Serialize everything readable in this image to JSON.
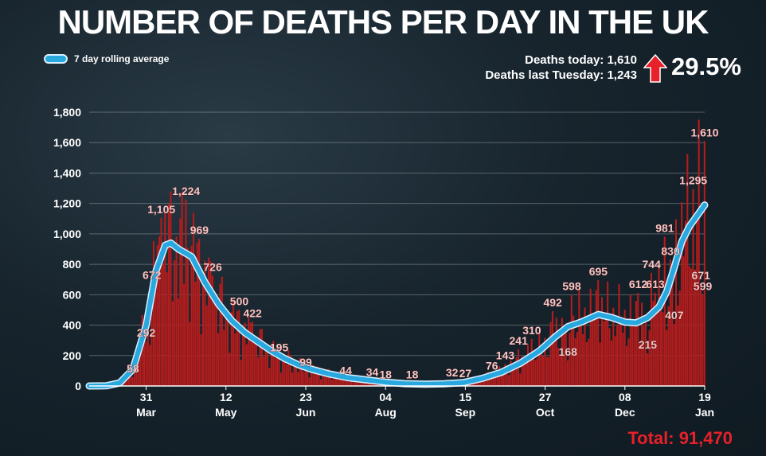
{
  "header": {
    "title": "NUMBER OF DEATHS PER DAY IN THE UK"
  },
  "legend": {
    "label": "7 day rolling average",
    "color": "#29a8e0"
  },
  "stats": {
    "today": "Deaths today: 1,610",
    "last_week": "Deaths last Tuesday: 1,243",
    "change": "29.5%",
    "arrow_icon": "red-up-arrow",
    "arrow_color": "#e8202a"
  },
  "footer": {
    "total": "Total: 91,470"
  },
  "chart_data": {
    "type": "bar",
    "bar_color": "#b81c1c",
    "line_color": "#29a8e0",
    "xlim": [
      "2020-03-01",
      "2021-01-19"
    ],
    "ylim": [
      0,
      1800
    ],
    "grid": true,
    "y_ticks": [
      0,
      200,
      400,
      600,
      800,
      1000,
      1200,
      1400,
      1600,
      1800
    ],
    "y_tick_labels": [
      "0",
      "200",
      "400",
      "600",
      "800",
      "1,000",
      "1,200",
      "1,400",
      "1,600",
      "1,800"
    ],
    "x_ticks": [
      {
        "date": "2020-03-31",
        "day": "31",
        "month": "Mar"
      },
      {
        "date": "2020-05-12",
        "day": "12",
        "month": "May"
      },
      {
        "date": "2020-06-23",
        "day": "23",
        "month": "Jun"
      },
      {
        "date": "2020-08-04",
        "day": "04",
        "month": "Aug"
      },
      {
        "date": "2020-09-15",
        "day": "15",
        "month": "Sep"
      },
      {
        "date": "2020-10-27",
        "day": "27",
        "month": "Oct"
      },
      {
        "date": "2020-12-08",
        "day": "08",
        "month": "Dec"
      },
      {
        "date": "2021-01-19",
        "day": "19",
        "month": "Jan"
      }
    ],
    "annotations": [
      {
        "date": "2020-03-24",
        "value": 58,
        "label": "58"
      },
      {
        "date": "2020-03-31",
        "value": 292,
        "label": "292"
      },
      {
        "date": "2020-04-03",
        "value": 672,
        "label": "672"
      },
      {
        "date": "2020-04-08",
        "value": 1105,
        "label": "1,105"
      },
      {
        "date": "2020-04-21",
        "value": 1224,
        "label": "1,224"
      },
      {
        "date": "2020-04-28",
        "value": 969,
        "label": "969"
      },
      {
        "date": "2020-05-05",
        "value": 726,
        "label": "726"
      },
      {
        "date": "2020-05-19",
        "value": 500,
        "label": "500"
      },
      {
        "date": "2020-05-26",
        "value": 422,
        "label": "422"
      },
      {
        "date": "2020-06-09",
        "value": 195,
        "label": "195"
      },
      {
        "date": "2020-06-23",
        "value": 99,
        "label": "99"
      },
      {
        "date": "2020-07-14",
        "value": 44,
        "label": "44"
      },
      {
        "date": "2020-07-28",
        "value": 34,
        "label": "34"
      },
      {
        "date": "2020-08-04",
        "value": 18,
        "label": "18"
      },
      {
        "date": "2020-08-18",
        "value": 18,
        "label": "18"
      },
      {
        "date": "2020-09-08",
        "value": 32,
        "label": "32"
      },
      {
        "date": "2020-09-15",
        "value": 27,
        "label": "27"
      },
      {
        "date": "2020-09-29",
        "value": 76,
        "label": "76"
      },
      {
        "date": "2020-10-06",
        "value": 143,
        "label": "143"
      },
      {
        "date": "2020-10-13",
        "value": 241,
        "label": "241"
      },
      {
        "date": "2020-10-20",
        "value": 310,
        "label": "310"
      },
      {
        "date": "2020-10-31",
        "value": 492,
        "label": "492"
      },
      {
        "date": "2020-11-08",
        "value": 168,
        "label": "168"
      },
      {
        "date": "2020-11-10",
        "value": 598,
        "label": "598"
      },
      {
        "date": "2020-11-24",
        "value": 695,
        "label": "695"
      },
      {
        "date": "2020-12-15",
        "value": 612,
        "label": "612"
      },
      {
        "date": "2020-12-20",
        "value": 215,
        "label": "215"
      },
      {
        "date": "2020-12-22",
        "value": 744,
        "label": "744"
      },
      {
        "date": "2020-12-24",
        "value": 613,
        "label": "613"
      },
      {
        "date": "2020-12-29",
        "value": 981,
        "label": "981"
      },
      {
        "date": "2021-01-01",
        "value": 830,
        "label": "830"
      },
      {
        "date": "2021-01-03",
        "value": 407,
        "label": "407"
      },
      {
        "date": "2021-01-13",
        "value": 1295,
        "label": "1,295"
      },
      {
        "date": "2021-01-17",
        "value": 671,
        "label": "671"
      },
      {
        "date": "2021-01-18",
        "value": 599,
        "label": "599"
      },
      {
        "date": "2021-01-19",
        "value": 1610,
        "label": "1,610"
      }
    ],
    "rolling_average": [
      {
        "date": "2020-03-01",
        "value": 0
      },
      {
        "date": "2020-03-10",
        "value": 1
      },
      {
        "date": "2020-03-17",
        "value": 20
      },
      {
        "date": "2020-03-24",
        "value": 110
      },
      {
        "date": "2020-03-31",
        "value": 400
      },
      {
        "date": "2020-04-05",
        "value": 750
      },
      {
        "date": "2020-04-10",
        "value": 925
      },
      {
        "date": "2020-04-13",
        "value": 940
      },
      {
        "date": "2020-04-17",
        "value": 900
      },
      {
        "date": "2020-04-24",
        "value": 850
      },
      {
        "date": "2020-05-01",
        "value": 680
      },
      {
        "date": "2020-05-08",
        "value": 540
      },
      {
        "date": "2020-05-15",
        "value": 430
      },
      {
        "date": "2020-05-22",
        "value": 350
      },
      {
        "date": "2020-05-29",
        "value": 290
      },
      {
        "date": "2020-06-05",
        "value": 230
      },
      {
        "date": "2020-06-12",
        "value": 180
      },
      {
        "date": "2020-06-19",
        "value": 140
      },
      {
        "date": "2020-06-26",
        "value": 110
      },
      {
        "date": "2020-07-05",
        "value": 80
      },
      {
        "date": "2020-07-15",
        "value": 55
      },
      {
        "date": "2020-07-25",
        "value": 40
      },
      {
        "date": "2020-08-04",
        "value": 25
      },
      {
        "date": "2020-08-14",
        "value": 15
      },
      {
        "date": "2020-08-25",
        "value": 12
      },
      {
        "date": "2020-09-04",
        "value": 14
      },
      {
        "date": "2020-09-14",
        "value": 22
      },
      {
        "date": "2020-09-24",
        "value": 50
      },
      {
        "date": "2020-10-04",
        "value": 90
      },
      {
        "date": "2020-10-14",
        "value": 150
      },
      {
        "date": "2020-10-24",
        "value": 230
      },
      {
        "date": "2020-11-01",
        "value": 320
      },
      {
        "date": "2020-11-08",
        "value": 390
      },
      {
        "date": "2020-11-15",
        "value": 420
      },
      {
        "date": "2020-11-24",
        "value": 470
      },
      {
        "date": "2020-12-01",
        "value": 450
      },
      {
        "date": "2020-12-08",
        "value": 420
      },
      {
        "date": "2020-12-14",
        "value": 415
      },
      {
        "date": "2020-12-20",
        "value": 450
      },
      {
        "date": "2020-12-26",
        "value": 520
      },
      {
        "date": "2020-12-30",
        "value": 620
      },
      {
        "date": "2021-01-03",
        "value": 780
      },
      {
        "date": "2021-01-07",
        "value": 950
      },
      {
        "date": "2021-01-11",
        "value": 1050
      },
      {
        "date": "2021-01-15",
        "value": 1120
      },
      {
        "date": "2021-01-19",
        "value": 1190
      }
    ]
  }
}
